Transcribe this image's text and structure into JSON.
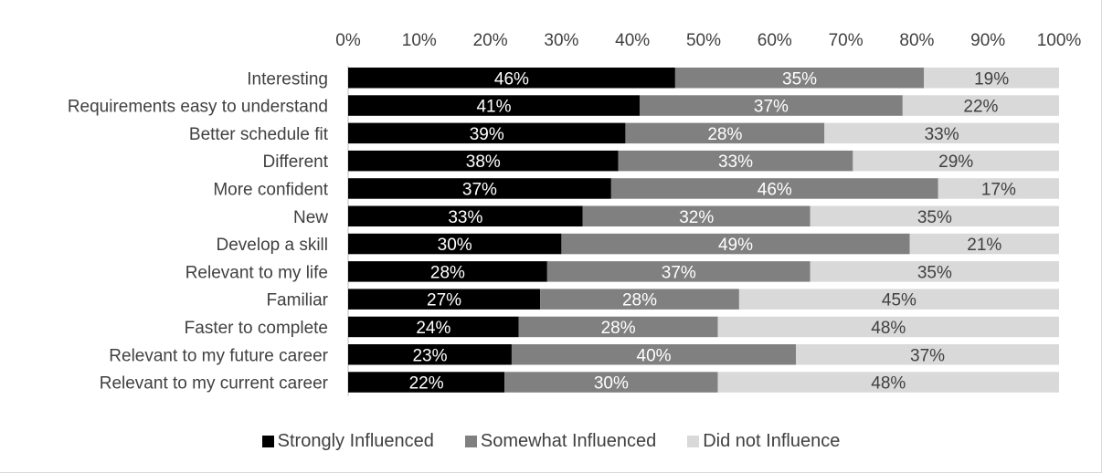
{
  "chart_data": {
    "type": "bar",
    "orientation": "horizontal",
    "stacked": true,
    "categories": [
      "Interesting",
      "Requirements easy to understand",
      "Better schedule fit",
      "Different",
      "More confident",
      "New",
      "Develop a skill",
      "Relevant to my life",
      "Familiar",
      "Faster to complete",
      "Relevant to my future career",
      "Relevant to my current career"
    ],
    "series": [
      {
        "name": "Strongly Influenced",
        "color": "#000000",
        "label_color": "#ffffff",
        "values": [
          46,
          41,
          39,
          38,
          37,
          33,
          30,
          28,
          27,
          24,
          23,
          22
        ]
      },
      {
        "name": "Somewhat Influenced",
        "color": "#808080",
        "label_color": "#ffffff",
        "values": [
          35,
          37,
          28,
          33,
          46,
          32,
          49,
          37,
          28,
          28,
          40,
          30
        ]
      },
      {
        "name": "Did not Influence",
        "color": "#d9d9d9",
        "label_color": "#404040",
        "values": [
          19,
          22,
          33,
          29,
          17,
          35,
          21,
          35,
          45,
          48,
          37,
          48
        ]
      }
    ],
    "xlim": [
      0,
      100
    ],
    "xticks": [
      "0%",
      "10%",
      "20%",
      "30%",
      "40%",
      "50%",
      "60%",
      "70%",
      "80%",
      "90%",
      "100%"
    ],
    "value_suffix": "%",
    "axis_position": "top",
    "grid": false,
    "legend_position": "bottom"
  }
}
